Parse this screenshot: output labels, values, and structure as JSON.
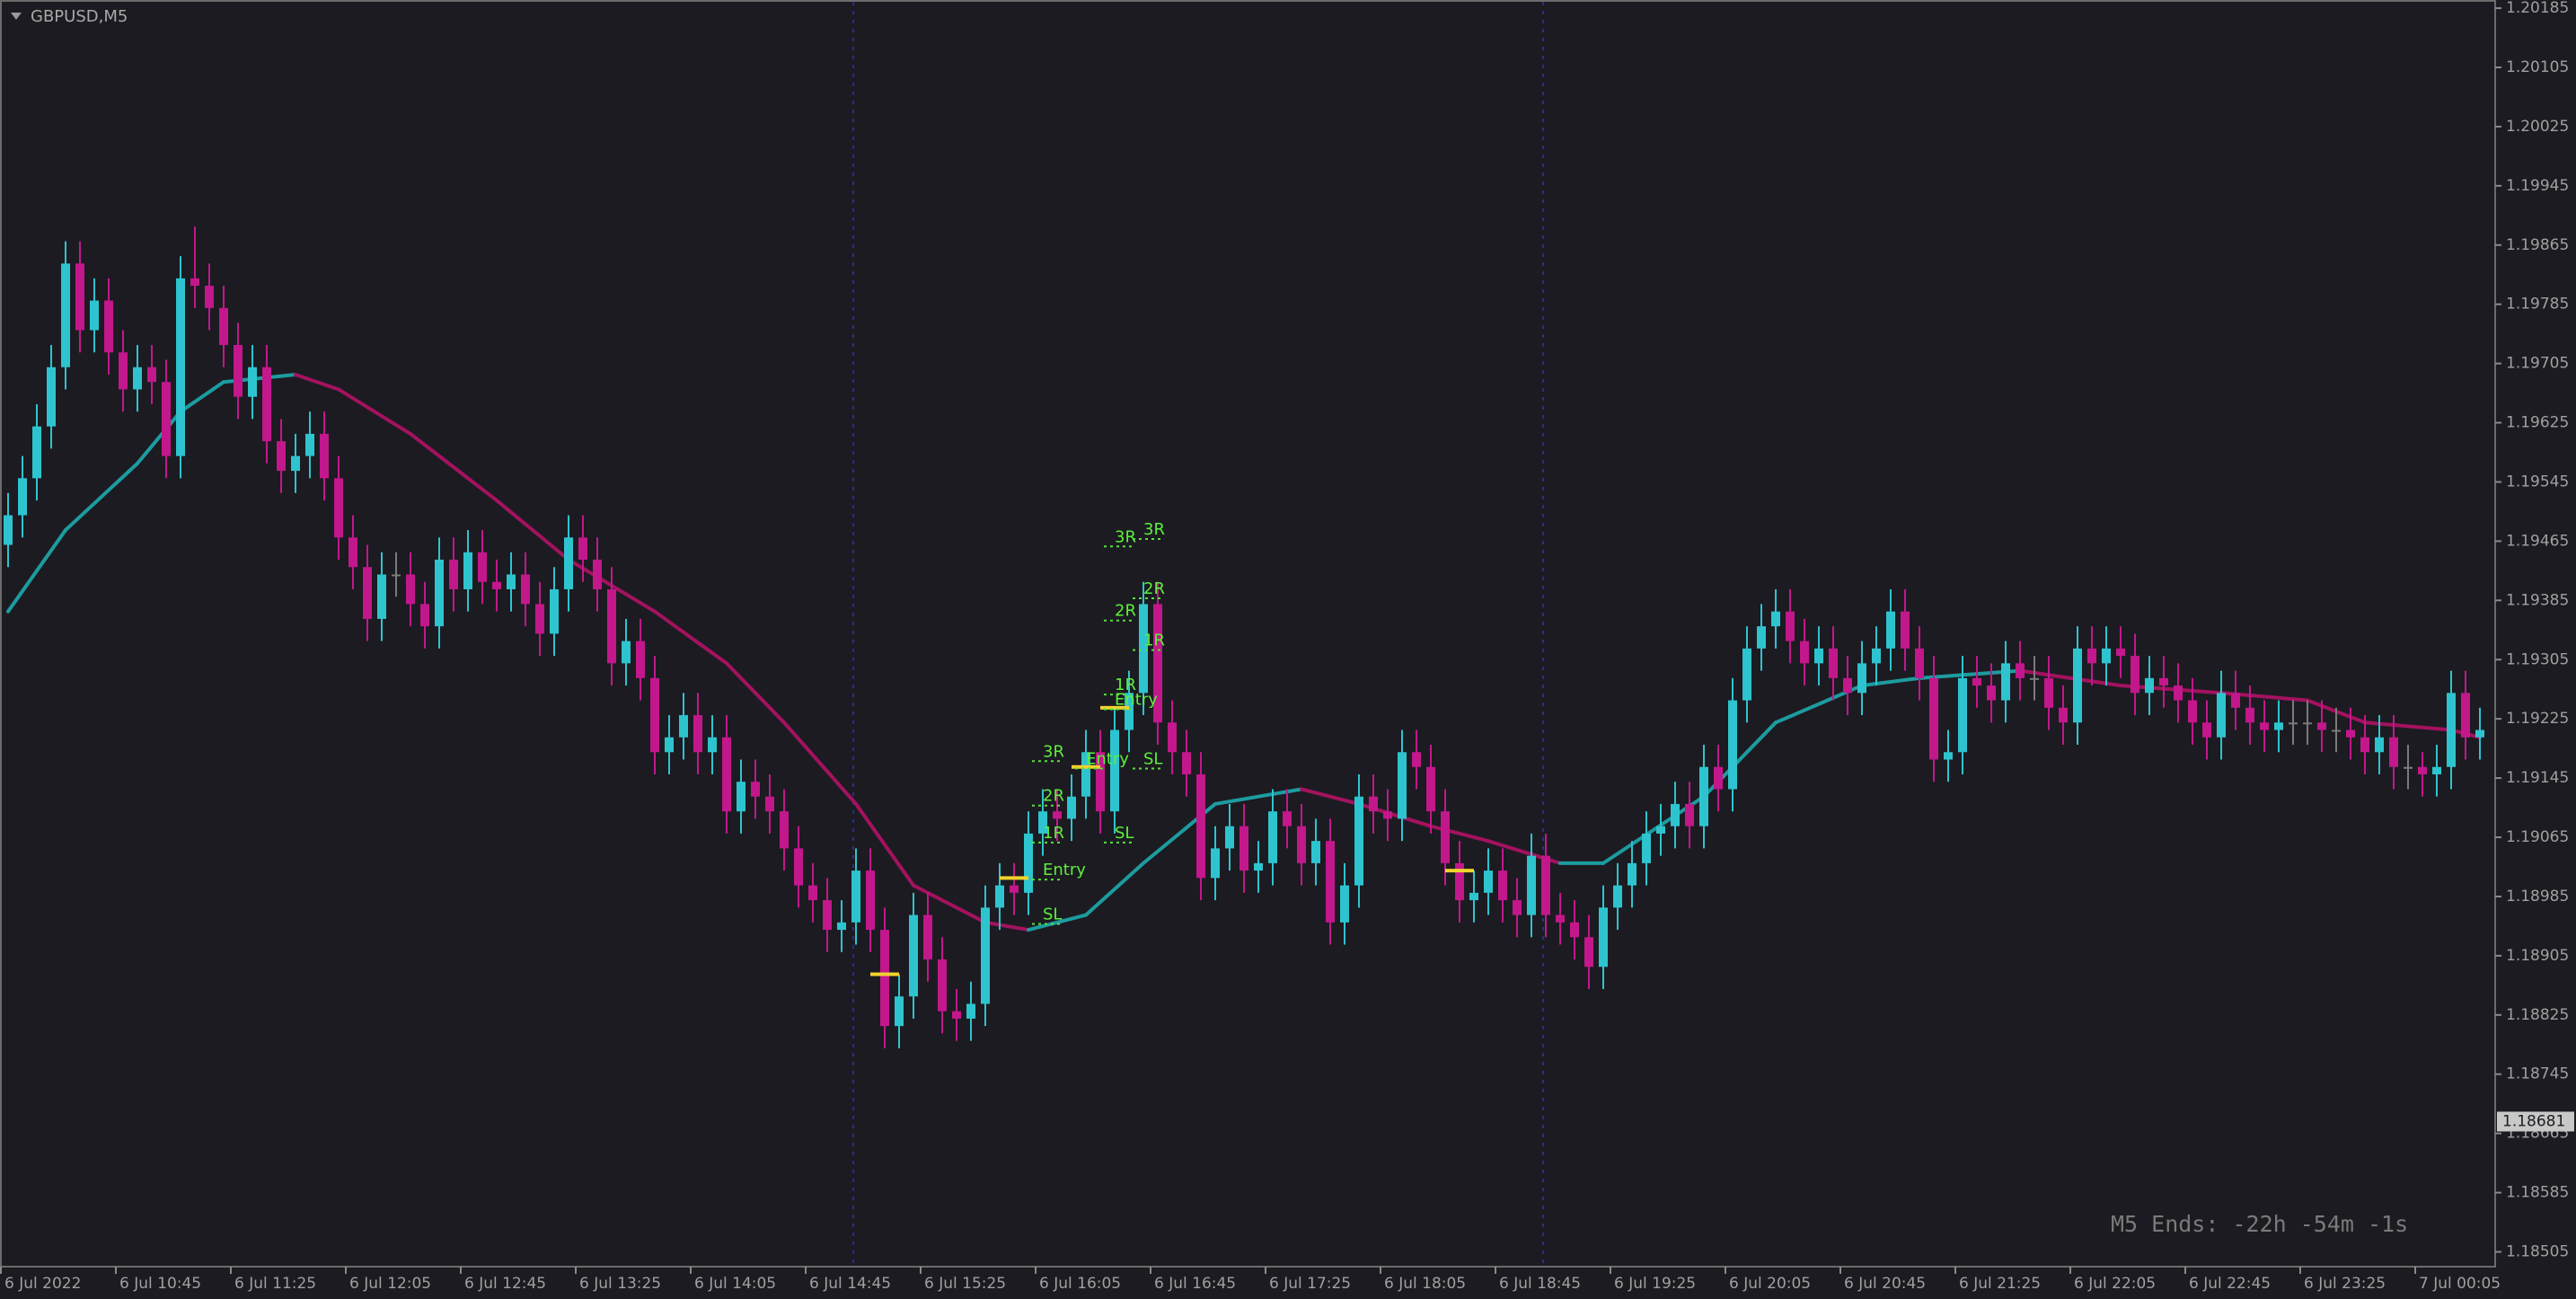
{
  "chart_data": {
    "type": "candlestick",
    "title": "GBPUSD,M5",
    "timer": "M5 Ends: -22h -54m -1s",
    "last_price": 1.18681,
    "up_color": "#2ec4cf",
    "down_color": "#c3178c",
    "ma_up_color": "#1c9ca0",
    "ma_down_color": "#a3125f",
    "ylim": [
      1.18485,
      1.20196
    ],
    "yticks": [
      1.20185,
      1.20105,
      1.20025,
      1.19945,
      1.19865,
      1.19785,
      1.19705,
      1.19625,
      1.19545,
      1.19465,
      1.19385,
      1.19305,
      1.19225,
      1.19145,
      1.19065,
      1.18985,
      1.18905,
      1.18825,
      1.18745,
      1.18665,
      1.18585,
      1.18505
    ],
    "xticks": [
      {
        "value": 0,
        "label": "6 Jul 2022"
      },
      {
        "value": 8,
        "label": "6 Jul 10:45"
      },
      {
        "value": 16,
        "label": "6 Jul 11:25"
      },
      {
        "value": 24,
        "label": "6 Jul 12:05"
      },
      {
        "value": 32,
        "label": "6 Jul 12:45"
      },
      {
        "value": 40,
        "label": "6 Jul 13:25"
      },
      {
        "value": 48,
        "label": "6 Jul 14:05"
      },
      {
        "value": 56,
        "label": "6 Jul 14:45"
      },
      {
        "value": 64,
        "label": "6 Jul 15:25"
      },
      {
        "value": 72,
        "label": "6 Jul 16:05"
      },
      {
        "value": 80,
        "label": "6 Jul 16:45"
      },
      {
        "value": 88,
        "label": "6 Jul 17:25"
      },
      {
        "value": 96,
        "label": "6 Jul 18:05"
      },
      {
        "value": 104,
        "label": "6 Jul 18:45"
      },
      {
        "value": 112,
        "label": "6 Jul 19:25"
      },
      {
        "value": 120,
        "label": "6 Jul 20:05"
      },
      {
        "value": 128,
        "label": "6 Jul 20:45"
      },
      {
        "value": 136,
        "label": "6 Jul 21:25"
      },
      {
        "value": 144,
        "label": "6 Jul 22:05"
      },
      {
        "value": 152,
        "label": "6 Jul 22:45"
      },
      {
        "value": 160,
        "label": "6 Jul 23:25"
      },
      {
        "value": 168,
        "label": "7 Jul 00:05"
      }
    ],
    "candles": [
      [
        1.1946,
        1.1953,
        1.1943,
        1.195
      ],
      [
        1.195,
        1.1958,
        1.1947,
        1.1955
      ],
      [
        1.1955,
        1.1965,
        1.1952,
        1.1962
      ],
      [
        1.1962,
        1.1973,
        1.1959,
        1.197
      ],
      [
        1.197,
        1.1987,
        1.1967,
        1.1984
      ],
      [
        1.1984,
        1.1987,
        1.1972,
        1.1975
      ],
      [
        1.1975,
        1.1982,
        1.1972,
        1.1979
      ],
      [
        1.1979,
        1.1982,
        1.1969,
        1.1972
      ],
      [
        1.1972,
        1.1975,
        1.1964,
        1.1967
      ],
      [
        1.1967,
        1.1973,
        1.1964,
        1.197
      ],
      [
        1.197,
        1.1973,
        1.1965,
        1.1968
      ],
      [
        1.1968,
        1.1971,
        1.1955,
        1.1958
      ],
      [
        1.1958,
        1.1985,
        1.1955,
        1.1982
      ],
      [
        1.1982,
        1.1989,
        1.1978,
        1.1981
      ],
      [
        1.1981,
        1.1984,
        1.1975,
        1.1978
      ],
      [
        1.1978,
        1.1981,
        1.197,
        1.1973
      ],
      [
        1.1973,
        1.1976,
        1.1963,
        1.1966
      ],
      [
        1.1966,
        1.1973,
        1.1963,
        1.197
      ],
      [
        1.197,
        1.1973,
        1.1957,
        1.196
      ],
      [
        1.196,
        1.1963,
        1.1953,
        1.1956
      ],
      [
        1.1956,
        1.1961,
        1.1953,
        1.1958
      ],
      [
        1.1958,
        1.1964,
        1.1955,
        1.1961
      ],
      [
        1.1961,
        1.1964,
        1.1952,
        1.1955
      ],
      [
        1.1955,
        1.1958,
        1.1944,
        1.1947
      ],
      [
        1.1947,
        1.195,
        1.194,
        1.1943
      ],
      [
        1.1943,
        1.1946,
        1.1933,
        1.1936
      ],
      [
        1.1936,
        1.1945,
        1.1933,
        1.1942
      ],
      [
        1.1942,
        1.1945,
        1.1939,
        1.1942
      ],
      [
        1.1942,
        1.1945,
        1.1935,
        1.1938
      ],
      [
        1.1938,
        1.1941,
        1.1932,
        1.1935
      ],
      [
        1.1935,
        1.1947,
        1.1932,
        1.1944
      ],
      [
        1.1944,
        1.1947,
        1.1937,
        1.194
      ],
      [
        1.194,
        1.1948,
        1.1937,
        1.1945
      ],
      [
        1.1945,
        1.1948,
        1.1938,
        1.1941
      ],
      [
        1.1941,
        1.1944,
        1.1937,
        1.194
      ],
      [
        1.194,
        1.1945,
        1.1937,
        1.1942
      ],
      [
        1.1942,
        1.1945,
        1.1935,
        1.1938
      ],
      [
        1.1938,
        1.1941,
        1.1931,
        1.1934
      ],
      [
        1.1934,
        1.1943,
        1.1931,
        1.194
      ],
      [
        1.194,
        1.195,
        1.1937,
        1.1947
      ],
      [
        1.1947,
        1.195,
        1.1941,
        1.1944
      ],
      [
        1.1944,
        1.1947,
        1.1937,
        1.194
      ],
      [
        1.194,
        1.1943,
        1.1927,
        1.193
      ],
      [
        1.193,
        1.1936,
        1.1927,
        1.1933
      ],
      [
        1.1933,
        1.1936,
        1.1925,
        1.1928
      ],
      [
        1.1928,
        1.1931,
        1.1915,
        1.1918
      ],
      [
        1.1918,
        1.1923,
        1.1915,
        1.192
      ],
      [
        1.192,
        1.1926,
        1.1917,
        1.1923
      ],
      [
        1.1923,
        1.1926,
        1.1915,
        1.1918
      ],
      [
        1.1918,
        1.1923,
        1.1915,
        1.192
      ],
      [
        1.192,
        1.1923,
        1.1907,
        1.191
      ],
      [
        1.191,
        1.1917,
        1.1907,
        1.1914
      ],
      [
        1.1914,
        1.1917,
        1.1909,
        1.1912
      ],
      [
        1.1912,
        1.1915,
        1.1907,
        1.191
      ],
      [
        1.191,
        1.1913,
        1.1902,
        1.1905
      ],
      [
        1.1905,
        1.1908,
        1.1897,
        1.19
      ],
      [
        1.19,
        1.1903,
        1.1895,
        1.1898
      ],
      [
        1.1898,
        1.1901,
        1.1891,
        1.1894
      ],
      [
        1.1894,
        1.1898,
        1.1891,
        1.1895
      ],
      [
        1.1895,
        1.1905,
        1.1892,
        1.1902
      ],
      [
        1.1902,
        1.1905,
        1.1891,
        1.1894
      ],
      [
        1.1894,
        1.1897,
        1.1878,
        1.1881
      ],
      [
        1.1881,
        1.1888,
        1.1878,
        1.1885
      ],
      [
        1.1885,
        1.1899,
        1.1882,
        1.1896
      ],
      [
        1.1896,
        1.1899,
        1.1887,
        1.189
      ],
      [
        1.189,
        1.1893,
        1.188,
        1.1883
      ],
      [
        1.1883,
        1.1886,
        1.1879,
        1.1882
      ],
      [
        1.1882,
        1.1887,
        1.1879,
        1.1884
      ],
      [
        1.1884,
        1.19,
        1.1881,
        1.1897
      ],
      [
        1.1897,
        1.1903,
        1.1894,
        1.19
      ],
      [
        1.19,
        1.1903,
        1.1896,
        1.1899
      ],
      [
        1.1899,
        1.191,
        1.1896,
        1.1907
      ],
      [
        1.1907,
        1.1913,
        1.1904,
        1.191
      ],
      [
        1.191,
        1.1913,
        1.1906,
        1.1909
      ],
      [
        1.1909,
        1.1915,
        1.1906,
        1.1912
      ],
      [
        1.1912,
        1.1921,
        1.1909,
        1.1918
      ],
      [
        1.1918,
        1.1921,
        1.1907,
        1.191
      ],
      [
        1.191,
        1.1924,
        1.1907,
        1.1921
      ],
      [
        1.1921,
        1.1929,
        1.1918,
        1.1926
      ],
      [
        1.1926,
        1.1941,
        1.1923,
        1.1938
      ],
      [
        1.1938,
        1.1941,
        1.1919,
        1.1922
      ],
      [
        1.1922,
        1.1925,
        1.1915,
        1.1918
      ],
      [
        1.1918,
        1.1921,
        1.1912,
        1.1915
      ],
      [
        1.1915,
        1.1918,
        1.1898,
        1.1901
      ],
      [
        1.1901,
        1.1908,
        1.1898,
        1.1905
      ],
      [
        1.1905,
        1.1911,
        1.1902,
        1.1908
      ],
      [
        1.1908,
        1.1911,
        1.1899,
        1.1902
      ],
      [
        1.1902,
        1.1906,
        1.1899,
        1.1903
      ],
      [
        1.1903,
        1.1913,
        1.19,
        1.191
      ],
      [
        1.191,
        1.1913,
        1.1905,
        1.1908
      ],
      [
        1.1908,
        1.1911,
        1.19,
        1.1903
      ],
      [
        1.1903,
        1.1909,
        1.19,
        1.1906
      ],
      [
        1.1906,
        1.1909,
        1.1892,
        1.1895
      ],
      [
        1.1895,
        1.1903,
        1.1892,
        1.19
      ],
      [
        1.19,
        1.1915,
        1.1897,
        1.1912
      ],
      [
        1.1912,
        1.1915,
        1.1907,
        1.191
      ],
      [
        1.191,
        1.1913,
        1.1906,
        1.1909
      ],
      [
        1.1909,
        1.1921,
        1.1906,
        1.1918
      ],
      [
        1.1918,
        1.1921,
        1.1913,
        1.1916
      ],
      [
        1.1916,
        1.1919,
        1.1907,
        1.191
      ],
      [
        1.191,
        1.1913,
        1.19,
        1.1903
      ],
      [
        1.1903,
        1.1906,
        1.1895,
        1.1898
      ],
      [
        1.1898,
        1.1902,
        1.1895,
        1.1899
      ],
      [
        1.1899,
        1.1905,
        1.1896,
        1.1902
      ],
      [
        1.1902,
        1.1905,
        1.1895,
        1.1898
      ],
      [
        1.1898,
        1.1901,
        1.1893,
        1.1896
      ],
      [
        1.1896,
        1.1907,
        1.1893,
        1.1904
      ],
      [
        1.1904,
        1.1907,
        1.1893,
        1.1896
      ],
      [
        1.1896,
        1.1899,
        1.1892,
        1.1895
      ],
      [
        1.1895,
        1.1898,
        1.189,
        1.1893
      ],
      [
        1.1893,
        1.1896,
        1.1886,
        1.1889
      ],
      [
        1.1889,
        1.19,
        1.1886,
        1.1897
      ],
      [
        1.1897,
        1.1903,
        1.1894,
        1.19
      ],
      [
        1.19,
        1.1906,
        1.1897,
        1.1903
      ],
      [
        1.1903,
        1.191,
        1.19,
        1.1907
      ],
      [
        1.1907,
        1.1911,
        1.1904,
        1.1908
      ],
      [
        1.1908,
        1.1914,
        1.1905,
        1.1911
      ],
      [
        1.1911,
        1.1914,
        1.1905,
        1.1908
      ],
      [
        1.1908,
        1.1919,
        1.1905,
        1.1916
      ],
      [
        1.1916,
        1.1919,
        1.191,
        1.1913
      ],
      [
        1.1913,
        1.1928,
        1.191,
        1.1925
      ],
      [
        1.1925,
        1.1935,
        1.1922,
        1.1932
      ],
      [
        1.1932,
        1.1938,
        1.1929,
        1.1935
      ],
      [
        1.1935,
        1.194,
        1.1932,
        1.1937
      ],
      [
        1.1937,
        1.194,
        1.193,
        1.1933
      ],
      [
        1.1933,
        1.1936,
        1.1927,
        1.193
      ],
      [
        1.193,
        1.1935,
        1.1927,
        1.1932
      ],
      [
        1.1932,
        1.1935,
        1.1925,
        1.1928
      ],
      [
        1.1928,
        1.1931,
        1.1923,
        1.1926
      ],
      [
        1.1926,
        1.1933,
        1.1923,
        1.193
      ],
      [
        1.193,
        1.1935,
        1.1927,
        1.1932
      ],
      [
        1.1932,
        1.194,
        1.1929,
        1.1937
      ],
      [
        1.1937,
        1.194,
        1.1929,
        1.1932
      ],
      [
        1.1932,
        1.1935,
        1.1925,
        1.1928
      ],
      [
        1.1928,
        1.1931,
        1.1914,
        1.1917
      ],
      [
        1.1917,
        1.1921,
        1.1914,
        1.1918
      ],
      [
        1.1918,
        1.1931,
        1.1915,
        1.1928
      ],
      [
        1.1928,
        1.1931,
        1.1924,
        1.1927
      ],
      [
        1.1927,
        1.193,
        1.1922,
        1.1925
      ],
      [
        1.1925,
        1.1933,
        1.1922,
        1.193
      ],
      [
        1.193,
        1.1933,
        1.1925,
        1.1928
      ],
      [
        1.1928,
        1.1931,
        1.1925,
        1.1928
      ],
      [
        1.1928,
        1.1931,
        1.1921,
        1.1924
      ],
      [
        1.1924,
        1.1927,
        1.1919,
        1.1922
      ],
      [
        1.1922,
        1.1935,
        1.1919,
        1.1932
      ],
      [
        1.1932,
        1.1935,
        1.1927,
        1.193
      ],
      [
        1.193,
        1.1935,
        1.1927,
        1.1932
      ],
      [
        1.1932,
        1.1935,
        1.1928,
        1.1931
      ],
      [
        1.1931,
        1.1934,
        1.1923,
        1.1926
      ],
      [
        1.1926,
        1.1931,
        1.1923,
        1.1928
      ],
      [
        1.1928,
        1.1931,
        1.1924,
        1.1927
      ],
      [
        1.1927,
        1.193,
        1.1922,
        1.1925
      ],
      [
        1.1925,
        1.1928,
        1.1919,
        1.1922
      ],
      [
        1.1922,
        1.1925,
        1.1917,
        1.192
      ],
      [
        1.192,
        1.1929,
        1.1917,
        1.1926
      ],
      [
        1.1926,
        1.1929,
        1.1921,
        1.1924
      ],
      [
        1.1924,
        1.1927,
        1.1919,
        1.1922
      ],
      [
        1.1922,
        1.1925,
        1.1918,
        1.1921
      ],
      [
        1.1921,
        1.1925,
        1.1918,
        1.1922
      ],
      [
        1.1922,
        1.1925,
        1.1919,
        1.1922
      ],
      [
        1.1922,
        1.1925,
        1.1919,
        1.1922
      ],
      [
        1.1922,
        1.1925,
        1.1918,
        1.1921
      ],
      [
        1.1921,
        1.1924,
        1.1918,
        1.1921
      ],
      [
        1.1921,
        1.1924,
        1.1917,
        1.192
      ],
      [
        1.192,
        1.1923,
        1.1915,
        1.1918
      ],
      [
        1.1918,
        1.1923,
        1.1915,
        1.192
      ],
      [
        1.192,
        1.1923,
        1.1913,
        1.1916
      ],
      [
        1.1916,
        1.1919,
        1.1913,
        1.1916
      ],
      [
        1.1916,
        1.1918,
        1.1912,
        1.1915
      ],
      [
        1.1915,
        1.1919,
        1.1912,
        1.1916
      ],
      [
        1.1916,
        1.1929,
        1.1913,
        1.1926
      ],
      [
        1.1926,
        1.1929,
        1.1917,
        1.192
      ],
      [
        1.192,
        1.1924,
        1.1917,
        1.1921
      ]
    ],
    "ma": {
      "x": [
        0,
        4,
        9,
        12,
        15,
        20,
        23,
        28,
        34,
        39,
        45,
        50,
        54,
        59,
        63,
        68,
        71,
        75,
        79,
        84,
        90,
        94,
        99,
        103,
        108,
        111,
        118,
        123,
        129,
        133,
        140,
        147,
        154,
        160,
        164,
        170,
        172
      ],
      "values": [
        1.1937,
        1.1948,
        1.1957,
        1.1964,
        1.1968,
        1.1969,
        1.1967,
        1.1961,
        1.1952,
        1.1944,
        1.1937,
        1.193,
        1.1922,
        1.1911,
        1.19,
        1.1895,
        1.1894,
        1.1896,
        1.1903,
        1.1911,
        1.1913,
        1.1911,
        1.1908,
        1.1906,
        1.1903,
        1.1903,
        1.1912,
        1.1922,
        1.1927,
        1.1928,
        1.1929,
        1.1927,
        1.1926,
        1.1925,
        1.1922,
        1.1921,
        1.192
      ]
    },
    "annotations": [
      {
        "text": "3R",
        "x": 72,
        "y": 1.1918
      },
      {
        "text": "2R",
        "x": 72,
        "y": 1.1912
      },
      {
        "text": "1R",
        "x": 72,
        "y": 1.1907
      },
      {
        "text": "Entry",
        "x": 72,
        "y": 1.1902
      },
      {
        "text": "SL",
        "x": 72,
        "y": 1.1896
      },
      {
        "text": "3R",
        "x": 77,
        "y": 1.1947
      },
      {
        "text": "2R",
        "x": 77,
        "y": 1.1937
      },
      {
        "text": "1R",
        "x": 77,
        "y": 1.1927
      },
      {
        "text": "Entry",
        "x": 75,
        "y": 1.1917
      },
      {
        "text": "SL",
        "x": 77,
        "y": 1.1907
      },
      {
        "text": "3R",
        "x": 79,
        "y": 1.1948
      },
      {
        "text": "2R",
        "x": 79,
        "y": 1.194
      },
      {
        "text": "1R",
        "x": 79,
        "y": 1.1933
      },
      {
        "text": "Entry",
        "x": 77,
        "y": 1.1925
      },
      {
        "text": "SL",
        "x": 79,
        "y": 1.1917
      }
    ],
    "entry_lines": [
      {
        "x": 61,
        "y": 1.1888
      },
      {
        "x": 70,
        "y": 1.1901
      },
      {
        "x": 75,
        "y": 1.1916
      },
      {
        "x": 77,
        "y": 1.1924
      },
      {
        "x": 101,
        "y": 1.1902
      }
    ]
  }
}
